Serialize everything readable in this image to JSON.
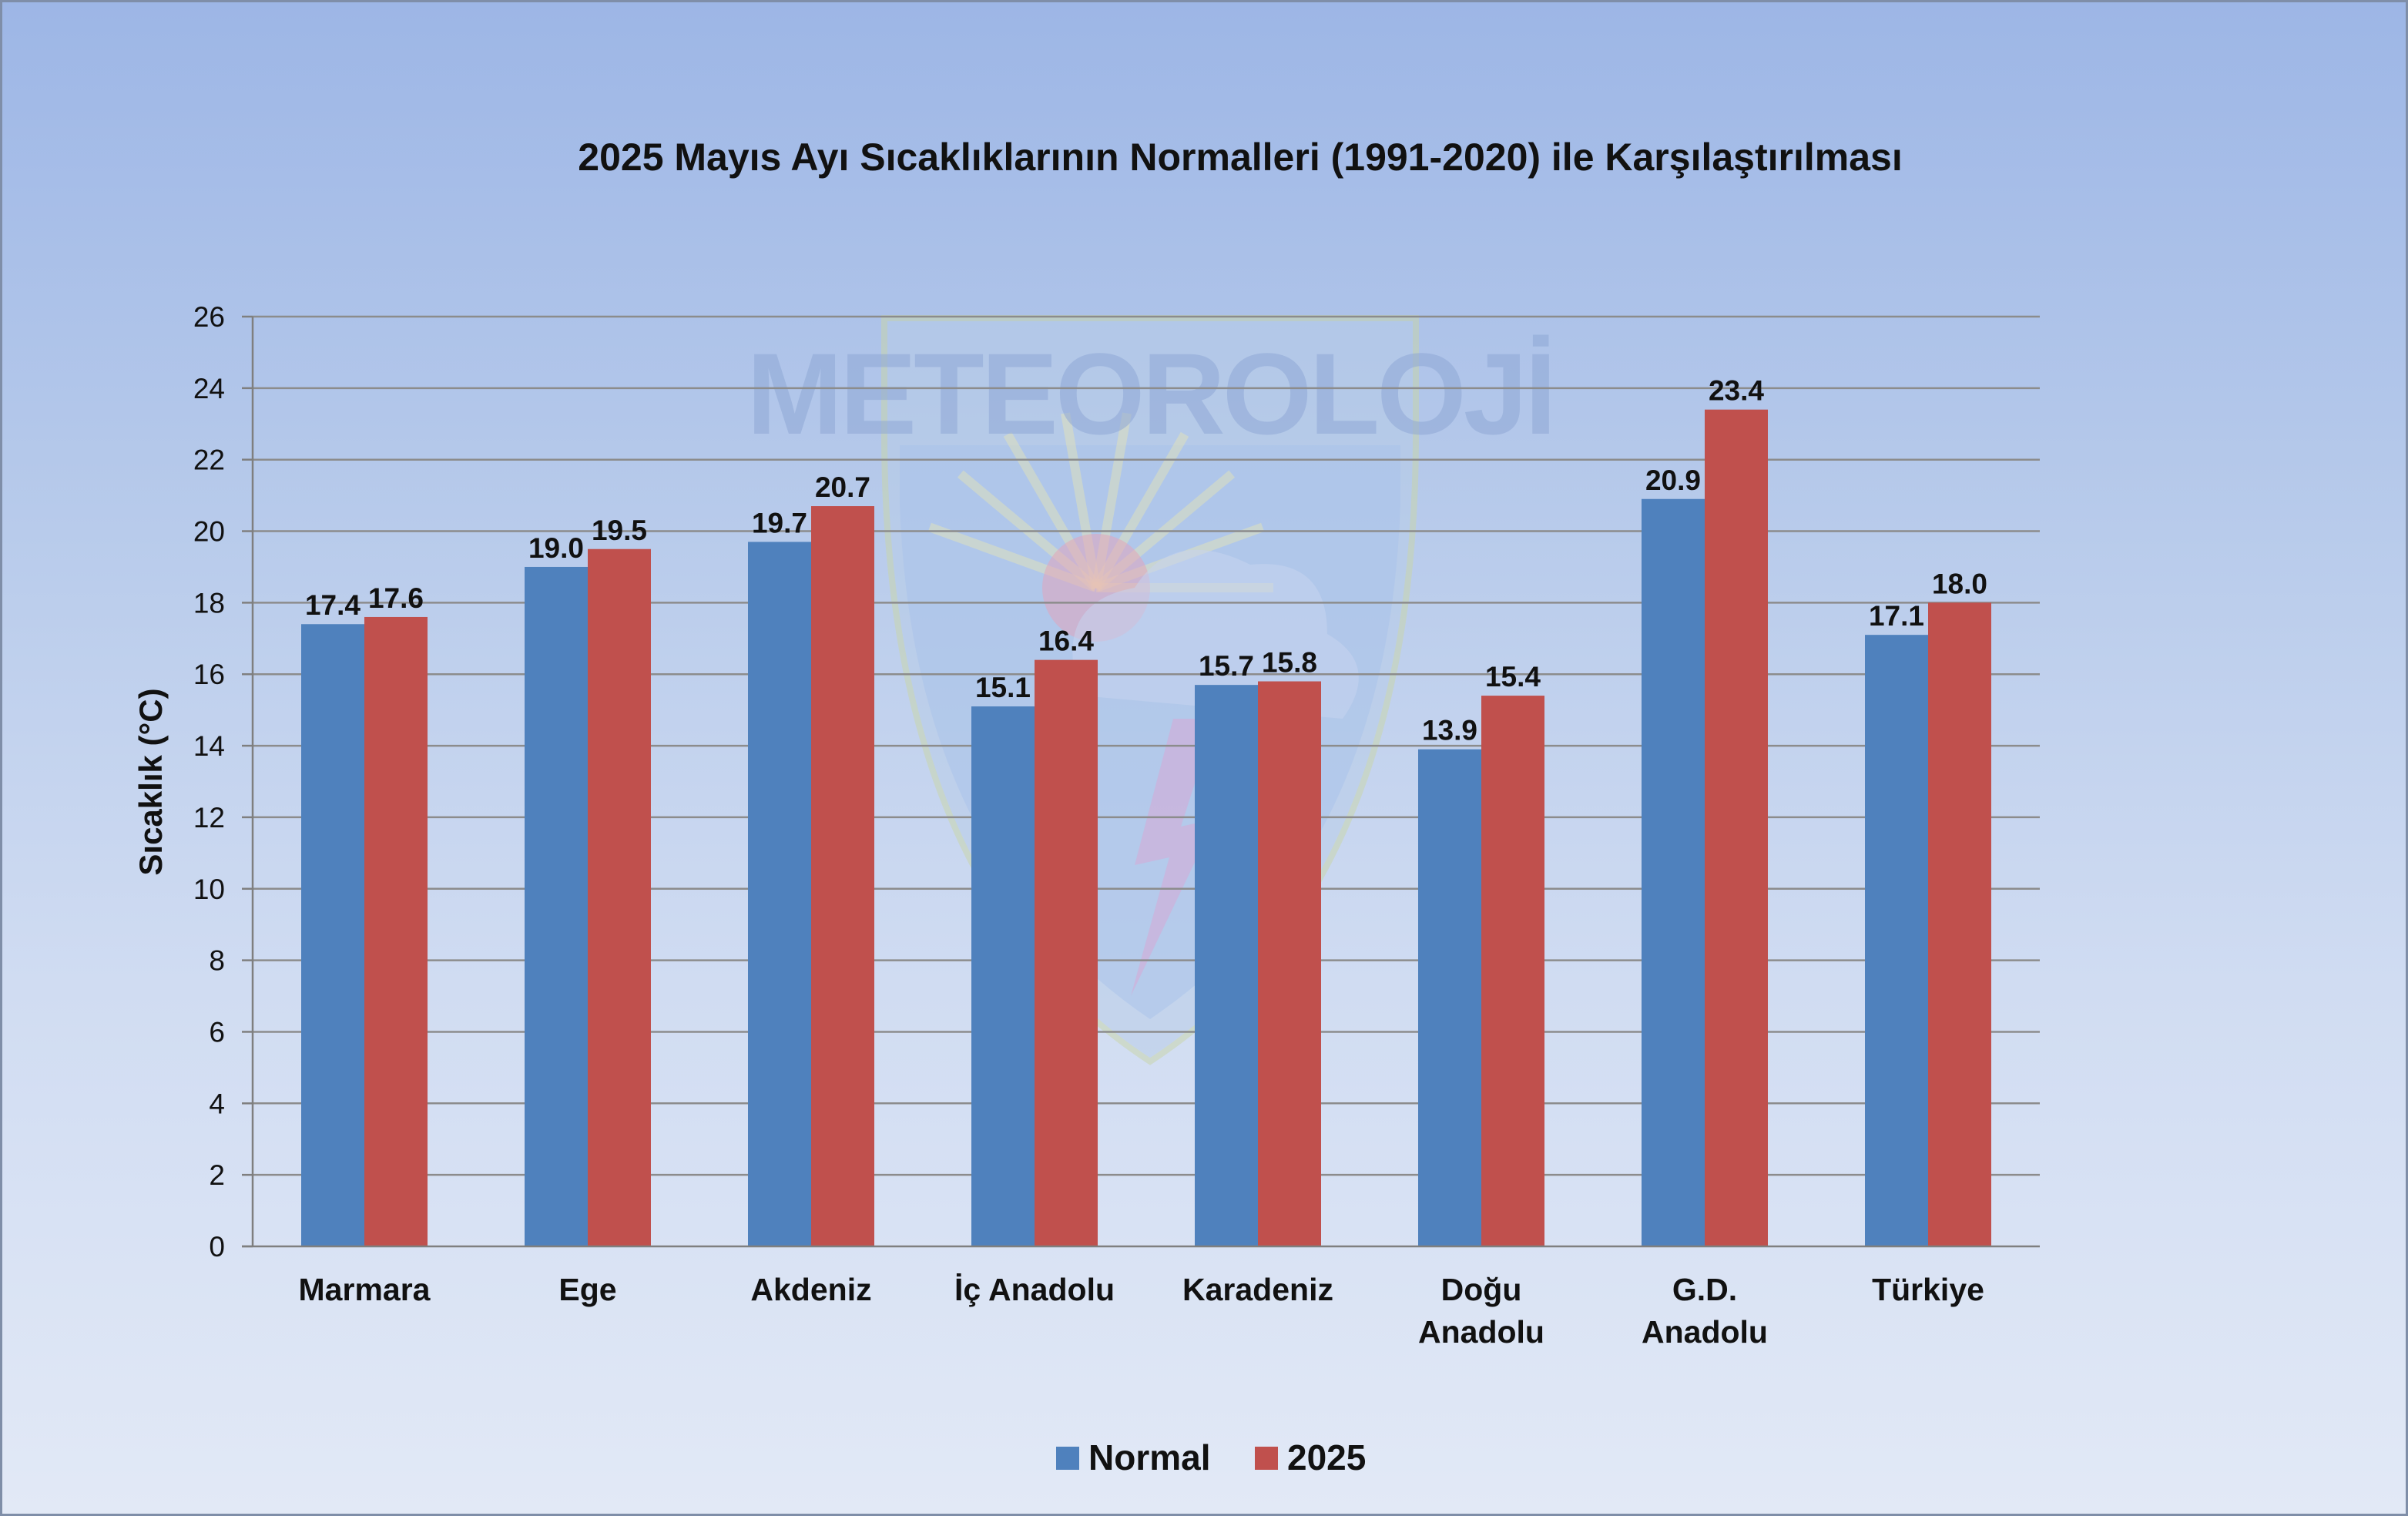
{
  "chart_data": {
    "type": "bar",
    "title": "2025 Mayıs Ayı Sıcaklıklarının Normalleri (1991-2020) ile Karşılaştırılması",
    "ylabel": "Sıcaklık (°C)",
    "xlabel": "",
    "ylim": [
      0,
      26
    ],
    "yticks": [
      0,
      2,
      4,
      6,
      8,
      10,
      12,
      14,
      16,
      18,
      20,
      22,
      24,
      26
    ],
    "grid": true,
    "legend_position": "bottom",
    "categories": [
      [
        "Marmara"
      ],
      [
        "Ege"
      ],
      [
        "Akdeniz"
      ],
      [
        "İç Anadolu"
      ],
      [
        "Karadeniz"
      ],
      [
        "Doğu",
        "Anadolu"
      ],
      [
        "G.D.",
        "Anadolu"
      ],
      [
        "Türkiye"
      ]
    ],
    "series": [
      {
        "name": "Normal",
        "color": "#4f81bd",
        "values": [
          17.4,
          19.0,
          19.7,
          15.1,
          15.7,
          13.9,
          20.9,
          17.1
        ],
        "labels": [
          "17.4",
          "19.0",
          "19.7",
          "15.1",
          "15.7",
          "13.9",
          "20.9",
          "17.1"
        ]
      },
      {
        "name": "2025",
        "color": "#c0504d",
        "values": [
          17.6,
          19.5,
          20.7,
          16.4,
          15.8,
          15.4,
          23.4,
          18.0
        ],
        "labels": [
          "17.6",
          "19.5",
          "20.7",
          "16.4",
          "15.8",
          "15.4",
          "23.4",
          "18.0"
        ]
      }
    ],
    "watermark": {
      "text": "METEOROLOJİ",
      "icon": "meteoroloji-logo-icon"
    }
  }
}
